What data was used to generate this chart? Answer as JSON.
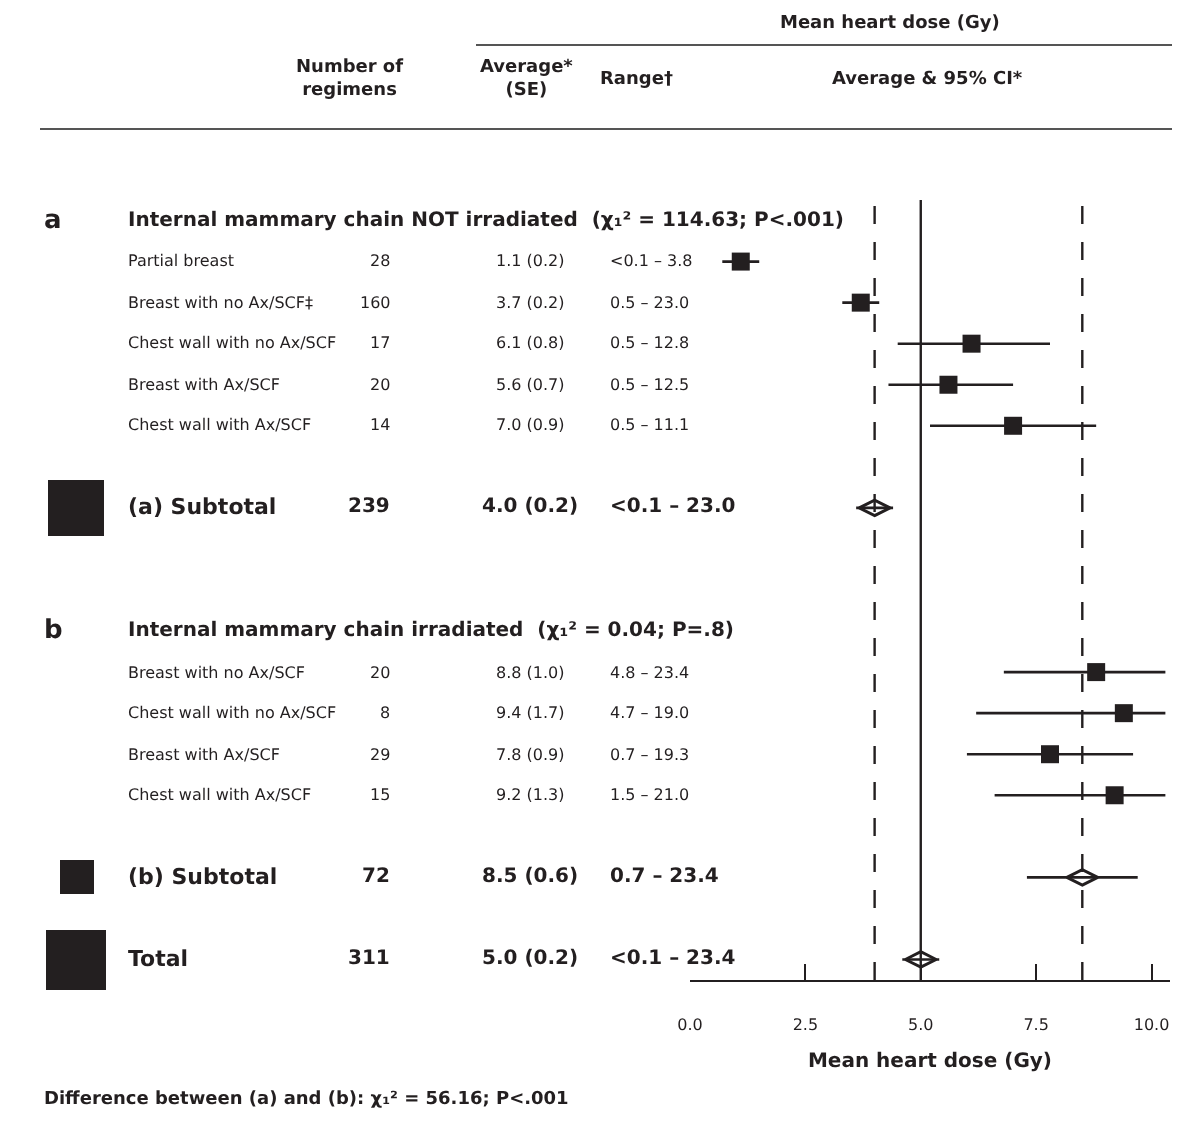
{
  "chart_data": {
    "type": "scatter",
    "orientation": "horizontal",
    "categories": [
      "Internal mammary chain NOT irradiated  (χ₁² = 114.63; P<.001)",
      "Partial breast",
      "Breast with no Ax/SCF‡",
      "Chest wall with no Ax/SCF",
      "Breast with Ax/SCF",
      "Chest wall with Ax/SCF",
      null,
      "(a) Subtotal",
      null,
      null,
      "Internal mammary chain irradiated  (χ₁² = 0.04; P=.8)",
      "Breast with no Ax/SCF",
      "Chest wall with no Ax/SCF",
      "Breast with Ax/SCF",
      "Chest wall with Ax/SCF",
      null,
      "(b) Subtotal",
      null,
      "Total"
    ],
    "series": [
      {
        "color": "#231f20",
        "marker": "square",
        "values": [
          null,
          1.1,
          3.7,
          6.1,
          5.6,
          7.0,
          null,
          null,
          null,
          null,
          null,
          8.8,
          9.4,
          7.8,
          9.2,
          null,
          null,
          null,
          null
        ],
        "value_labels": [
          null,
          "1.1 (0.2)",
          "3.7 (0.2)",
          "6.1 (0.8)",
          "5.6 (0.7)",
          "7.0 (0.9)",
          null,
          null,
          null,
          null,
          null,
          "8.8 (1.0)",
          "9.4 (1.7)",
          "7.8 (0.9)",
          "9.2 (1.3)",
          null,
          null,
          null,
          null
        ],
        "errors": [
          null,
          [
            0.7,
            1.5
          ],
          [
            3.3,
            4.1
          ],
          [
            4.5,
            7.8
          ],
          [
            4.3,
            7.0
          ],
          [
            5.2,
            8.8
          ],
          null,
          null,
          null,
          null,
          null,
          [
            6.8,
            10.3
          ],
          [
            6.2,
            10.3
          ],
          [
            6.0,
            9.6
          ],
          [
            6.6,
            10.3
          ],
          null,
          null,
          null,
          null
        ]
      },
      {
        "color": "#231f20",
        "marker": "diamond",
        "values": [
          null,
          null,
          null,
          null,
          null,
          null,
          null,
          4.0,
          null,
          null,
          null,
          null,
          null,
          null,
          null,
          null,
          8.5,
          null,
          5.0
        ],
        "value_labels": [
          null,
          null,
          null,
          null,
          null,
          null,
          null,
          "4.0 (0.2)",
          null,
          null,
          null,
          null,
          null,
          null,
          null,
          null,
          "8.5 (0.6)",
          null,
          "5.0 (0.2)"
        ],
        "errors": [
          null,
          null,
          null,
          null,
          null,
          null,
          null,
          [
            3.6,
            4.4
          ],
          null,
          null,
          null,
          null,
          null,
          null,
          null,
          null,
          [
            7.3,
            9.7
          ],
          null,
          [
            4.6,
            5.4
          ]
        ]
      }
    ],
    "xlim": [
      0,
      10.4
    ],
    "xticks": [
      {
        "value": 0,
        "label": "0.0"
      },
      {
        "value": 2.5,
        "label": "2.5"
      },
      {
        "value": 5,
        "label": "5.0"
      },
      {
        "value": 7.5,
        "label": "7.5"
      },
      {
        "value": 10,
        "label": "10.0"
      }
    ],
    "xlabel": "Mean heart dose (Gy)",
    "tick_labels": "x",
    "grid": false,
    "ref_lines": [
      {
        "axis": "x",
        "value": 5.0,
        "line_style": "solid"
      },
      {
        "axis": "x",
        "value": 4.0,
        "line_style": "dashed"
      },
      {
        "axis": "x",
        "value": 8.5,
        "line_style": "dashed"
      }
    ],
    "annotations": [
      "Mean heart dose (Gy)",
      "Number of regimens",
      "Average* (SE)",
      "Range†",
      "Average & 95% CI*",
      "Difference between (a) and (b): χ₁² = 56.16; P<.001",
      "a",
      "28",
      "<0.1 – 3.8",
      "160",
      "0.5 – 23.0",
      "17",
      "0.5 – 12.8",
      "20",
      "0.5 – 12.5",
      "14",
      "0.5 – 11.1",
      "239",
      "<0.1 – 23.0",
      "b",
      "20",
      "4.8 – 23.4",
      "8",
      "4.7 – 19.0",
      "29",
      "0.7 – 19.3",
      "15",
      "1.5 – 21.0",
      "72",
      "0.7 – 23.4",
      "311",
      "<0.1 – 23.4"
    ]
  }
}
